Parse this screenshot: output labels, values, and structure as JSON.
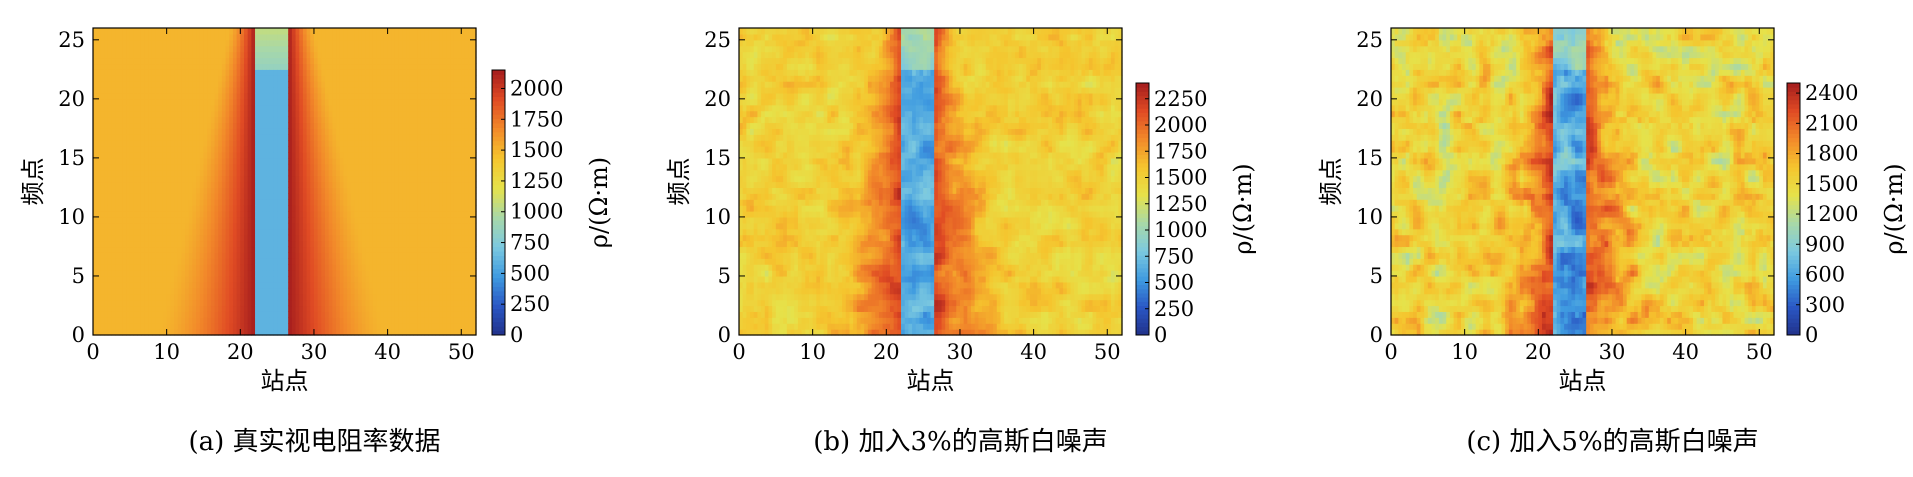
{
  "chart_data": [
    {
      "type": "heatmap",
      "caption": "(a) 真实视电阻率数据",
      "xlabel": "站点",
      "ylabel": "频点",
      "colorbar_label": "ρ/(Ω·m)",
      "xlim": [
        0,
        52
      ],
      "ylim": [
        0,
        26
      ],
      "x_ticks": [
        0,
        10,
        20,
        30,
        40,
        50
      ],
      "y_ticks": [
        0,
        5,
        10,
        15,
        20,
        25
      ],
      "zlim": [
        0,
        2150
      ],
      "colorbar_ticks": [
        0,
        250,
        500,
        750,
        1000,
        1250,
        1500,
        1750,
        2000
      ],
      "background_value": 1500,
      "anomaly": {
        "x_range": [
          22,
          26.5
        ],
        "value": 600
      },
      "noise": 0
    },
    {
      "type": "heatmap",
      "caption": "(b) 加入3%的高斯白噪声",
      "xlabel": "站点",
      "ylabel": "频点",
      "colorbar_label": "ρ/(Ω·m)",
      "xlim": [
        0,
        52
      ],
      "ylim": [
        0,
        26
      ],
      "x_ticks": [
        0,
        10,
        20,
        30,
        40,
        50
      ],
      "y_ticks": [
        0,
        5,
        10,
        15,
        20,
        25
      ],
      "zlim": [
        0,
        2400
      ],
      "colorbar_ticks": [
        0,
        250,
        500,
        750,
        1000,
        1250,
        1500,
        1750,
        2000,
        2250
      ],
      "background_value": 1500,
      "anomaly": {
        "x_range": [
          22,
          26.5
        ],
        "value": 600
      },
      "noise": 0.03
    },
    {
      "type": "heatmap",
      "caption": "(c) 加入5%的高斯白噪声",
      "xlabel": "站点",
      "ylabel": "频点",
      "colorbar_label": "ρ/(Ω·m)",
      "xlim": [
        0,
        52
      ],
      "ylim": [
        0,
        26
      ],
      "x_ticks": [
        0,
        10,
        20,
        30,
        40,
        50
      ],
      "y_ticks": [
        0,
        5,
        10,
        15,
        20,
        25
      ],
      "zlim": [
        0,
        2500
      ],
      "colorbar_ticks": [
        0,
        300,
        600,
        900,
        1200,
        1500,
        1800,
        2100,
        2400
      ],
      "background_value": 1500,
      "anomaly": {
        "x_range": [
          22,
          26.5
        ],
        "value": 600
      },
      "noise": 0.05
    }
  ],
  "colormap": [
    "#21318a",
    "#2a57c4",
    "#3f9be0",
    "#7cc9e0",
    "#a8d8a8",
    "#e6e24a",
    "#f5c52e",
    "#f28a2a",
    "#e04b24",
    "#a51d1d"
  ]
}
